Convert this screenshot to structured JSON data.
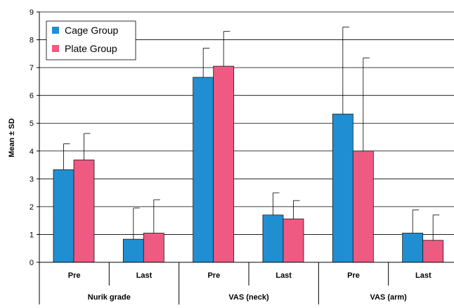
{
  "chart_data": {
    "type": "bar",
    "ylabel": "Mean ± SD",
    "ylim": [
      0,
      9
    ],
    "yticks": [
      0,
      1,
      2,
      3,
      4,
      5,
      6,
      7,
      8,
      9
    ],
    "grid": "horizontal",
    "legend_position": "top-left",
    "groups": [
      {
        "label": "Nurik grade",
        "categories": [
          "Pre",
          "Last"
        ]
      },
      {
        "label": "VAS (neck)",
        "categories": [
          "Pre",
          "Last"
        ]
      },
      {
        "label": "VAS (arm)",
        "categories": [
          "Pre",
          "Last"
        ]
      }
    ],
    "series": [
      {
        "name": "Cage Group",
        "color": "#1f8fd2",
        "values": [
          3.33,
          0.83,
          6.65,
          1.7,
          5.33,
          1.05
        ],
        "sd": [
          0.93,
          1.12,
          1.05,
          0.8,
          3.13,
          0.83
        ]
      },
      {
        "name": "Plate Group",
        "color": "#ee5a82",
        "values": [
          3.68,
          1.05,
          7.05,
          1.56,
          4.0,
          0.79
        ],
        "sd": [
          0.95,
          1.2,
          1.25,
          0.66,
          3.35,
          0.91
        ]
      }
    ]
  }
}
